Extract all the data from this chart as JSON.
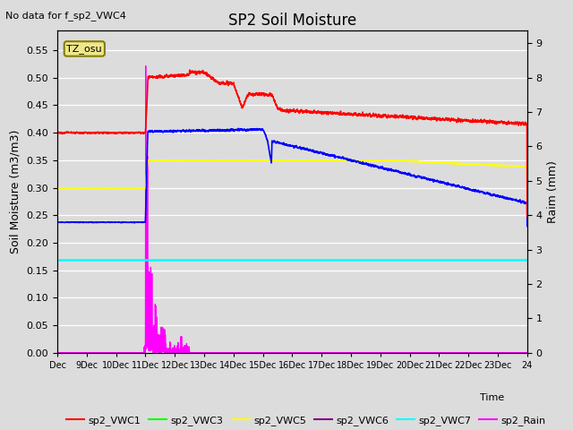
{
  "title": "SP2 Soil Moisture",
  "no_data_text": "No data for f_sp2_VWC4",
  "tz_label": "TZ_osu",
  "ylabel_left": "Soil Moisture (m3/m3)",
  "ylabel_right": "Raim (mm)",
  "xlabel": "Time",
  "ylim_left": [
    0.0,
    0.5867
  ],
  "ylim_right": [
    0.0,
    9.387
  ],
  "yticks_left": [
    0.0,
    0.05,
    0.1,
    0.15,
    0.2,
    0.25,
    0.3,
    0.35,
    0.4,
    0.45,
    0.5,
    0.55
  ],
  "yticks_right": [
    0.0,
    1.0,
    2.0,
    3.0,
    4.0,
    5.0,
    6.0,
    7.0,
    8.0,
    9.0
  ],
  "bg_color": "#dcdcdc",
  "xtick_labels": [
    "Dec",
    "9Dec",
    "10Dec",
    "11Dec",
    "12Dec",
    "13Dec",
    "14Dec",
    "15Dec",
    "16Dec",
    "17Dec",
    "18Dec",
    "19Dec",
    "20Dec",
    "21Dec",
    "22Dec",
    "23Dec",
    "24"
  ],
  "legend_colors": {
    "sp2_VWC1": "red",
    "sp2_VWC2": "blue",
    "sp2_VWC3": "lime",
    "sp2_VWC5": "yellow",
    "sp2_VWC6": "purple",
    "sp2_VWC7": "cyan",
    "sp2_Rain": "magenta"
  }
}
